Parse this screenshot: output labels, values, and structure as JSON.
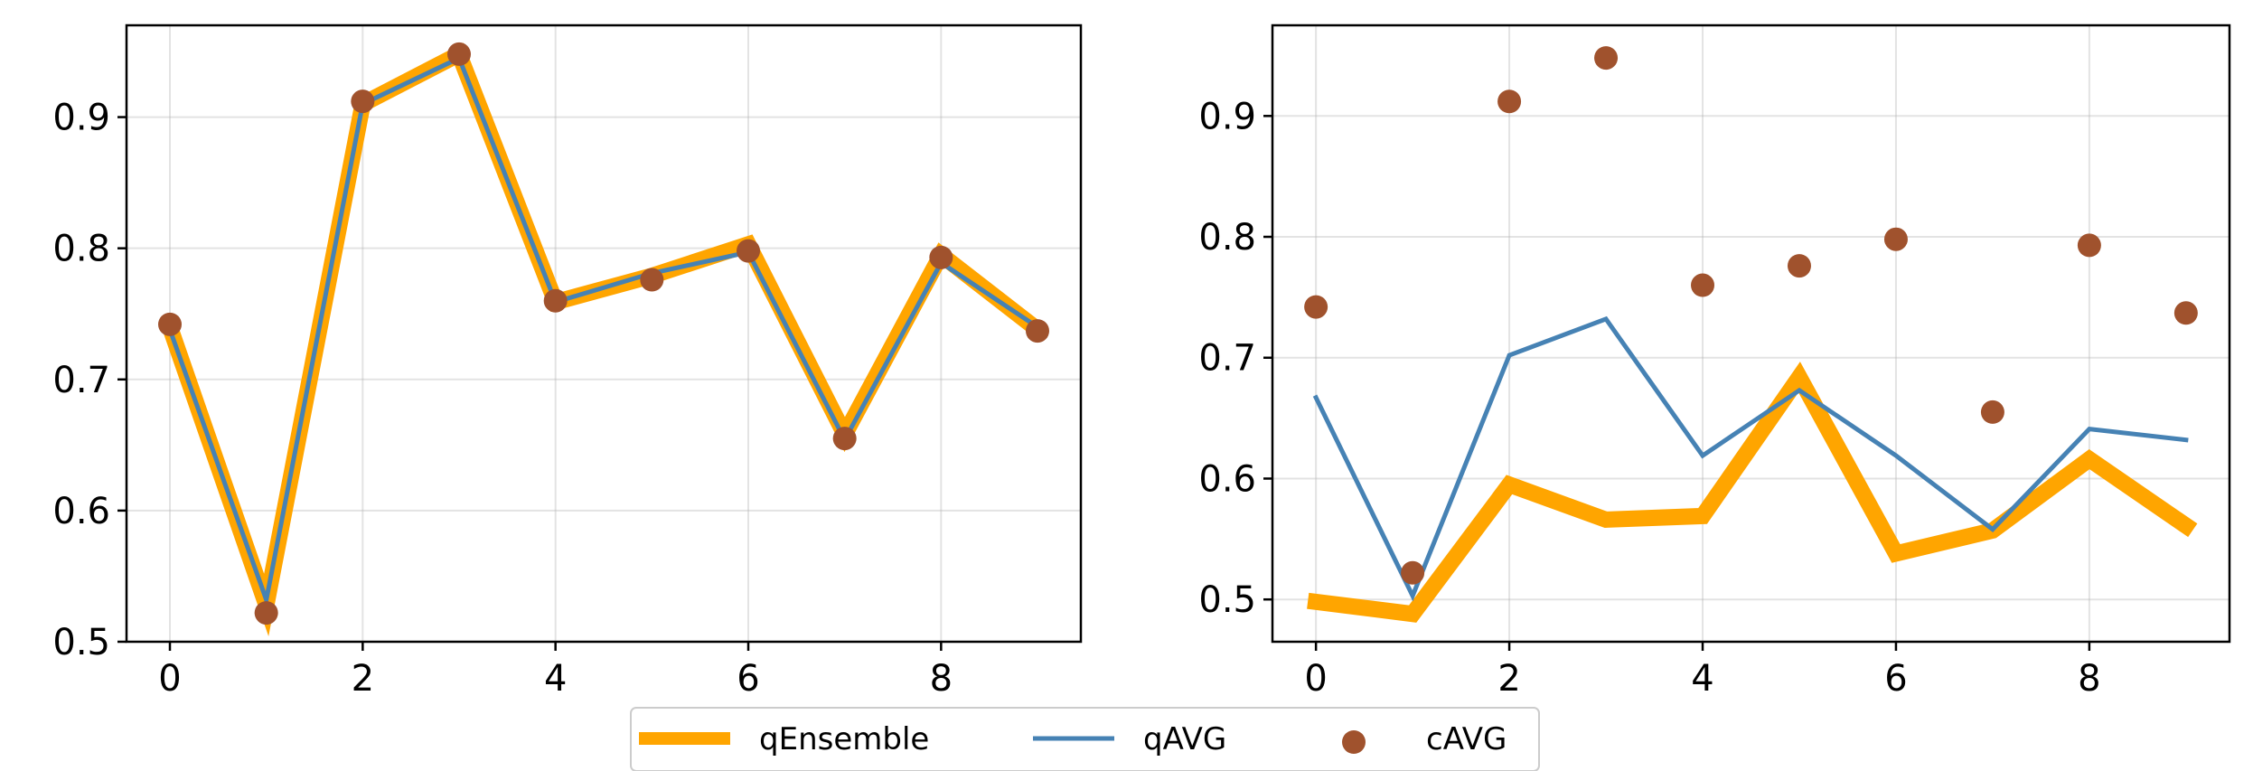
{
  "chart_data": [
    {
      "type": "line",
      "title": "",
      "xlabel": "",
      "ylabel": "",
      "xlim": [
        -0.45,
        9.45
      ],
      "ylim": [
        0.5,
        0.97
      ],
      "xticks": [
        0,
        2,
        4,
        6,
        8
      ],
      "xtick_labels": [
        "0",
        "2",
        "4",
        "6",
        "8"
      ],
      "yticks": [
        0.5,
        0.6,
        0.7,
        0.8,
        0.9
      ],
      "ytick_labels": [
        "0.5",
        "0.6",
        "0.7",
        "0.8",
        "0.9"
      ],
      "grid": true,
      "x": [
        0,
        1,
        2,
        3,
        4,
        5,
        6,
        7,
        8,
        9
      ],
      "series": [
        {
          "name": "qEnsemble",
          "style": "line",
          "color": "#FFA500",
          "values": [
            0.74,
            0.528,
            0.91,
            0.948,
            0.759,
            0.779,
            0.803,
            0.658,
            0.795,
            0.738
          ]
        },
        {
          "name": "qAVG",
          "style": "line",
          "color": "#4682B4",
          "values": [
            0.738,
            0.532,
            0.91,
            0.945,
            0.759,
            0.781,
            0.797,
            0.654,
            0.789,
            0.74
          ]
        },
        {
          "name": "cAVG",
          "style": "scatter",
          "color": "#A0522D",
          "values": [
            0.742,
            0.522,
            0.912,
            0.948,
            0.76,
            0.776,
            0.798,
            0.655,
            0.793,
            0.737
          ]
        }
      ]
    },
    {
      "type": "line",
      "title": "",
      "xlabel": "",
      "ylabel": "",
      "xlim": [
        -0.45,
        9.45
      ],
      "ylim": [
        0.465,
        0.975
      ],
      "xticks": [
        0,
        2,
        4,
        6,
        8
      ],
      "xtick_labels": [
        "0",
        "2",
        "4",
        "6",
        "8"
      ],
      "yticks": [
        0.5,
        0.6,
        0.7,
        0.8,
        0.9
      ],
      "ytick_labels": [
        "0.5",
        "0.6",
        "0.7",
        "0.8",
        "0.9"
      ],
      "grid": true,
      "x": [
        0,
        1,
        2,
        3,
        4,
        5,
        6,
        7,
        8,
        9
      ],
      "series": [
        {
          "name": "qEnsemble",
          "style": "line",
          "color": "#FFA500",
          "values": [
            0.498,
            0.488,
            0.595,
            0.566,
            0.569,
            0.684,
            0.538,
            0.557,
            0.616,
            0.561
          ]
        },
        {
          "name": "qAVG",
          "style": "line",
          "color": "#4682B4",
          "values": [
            0.667,
            0.503,
            0.702,
            0.732,
            0.619,
            0.673,
            0.619,
            0.558,
            0.641,
            0.632
          ]
        },
        {
          "name": "cAVG",
          "style": "scatter",
          "color": "#A0522D",
          "values": [
            0.742,
            0.522,
            0.912,
            0.948,
            0.76,
            0.776,
            0.798,
            0.655,
            0.793,
            0.737
          ]
        }
      ]
    }
  ],
  "legend": {
    "placement": "bottom-center",
    "items": [
      {
        "label": "qEnsemble",
        "marker": "line-thick",
        "color": "#FFA500"
      },
      {
        "label": "qAVG",
        "marker": "line",
        "color": "#4682B4"
      },
      {
        "label": "cAVG",
        "marker": "dot",
        "color": "#A0522D"
      }
    ]
  }
}
